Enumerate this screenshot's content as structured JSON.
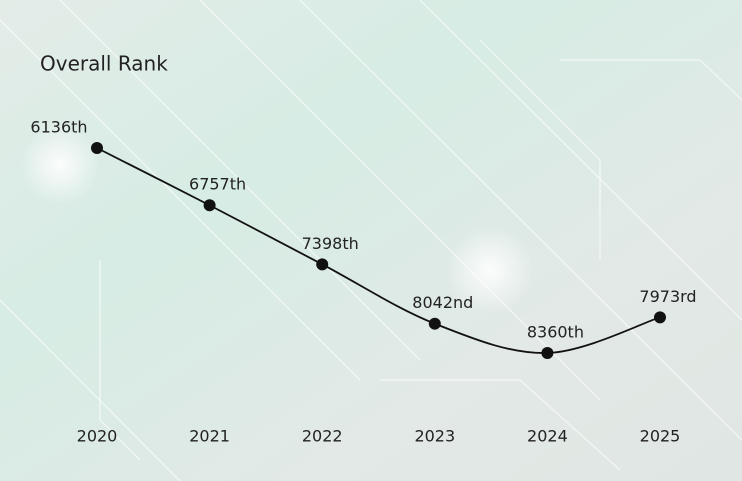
{
  "chart_data": {
    "type": "line",
    "title": "Overall Rank",
    "categories": [
      "2020",
      "2021",
      "2022",
      "2023",
      "2024",
      "2025"
    ],
    "values": [
      6136,
      6757,
      7398,
      8042,
      8360,
      7973
    ],
    "value_labels": [
      "6136th",
      "6757th",
      "7398th",
      "8042nd",
      "8360th",
      "7973rd"
    ],
    "color": "#111111",
    "y_reversed": true
  }
}
